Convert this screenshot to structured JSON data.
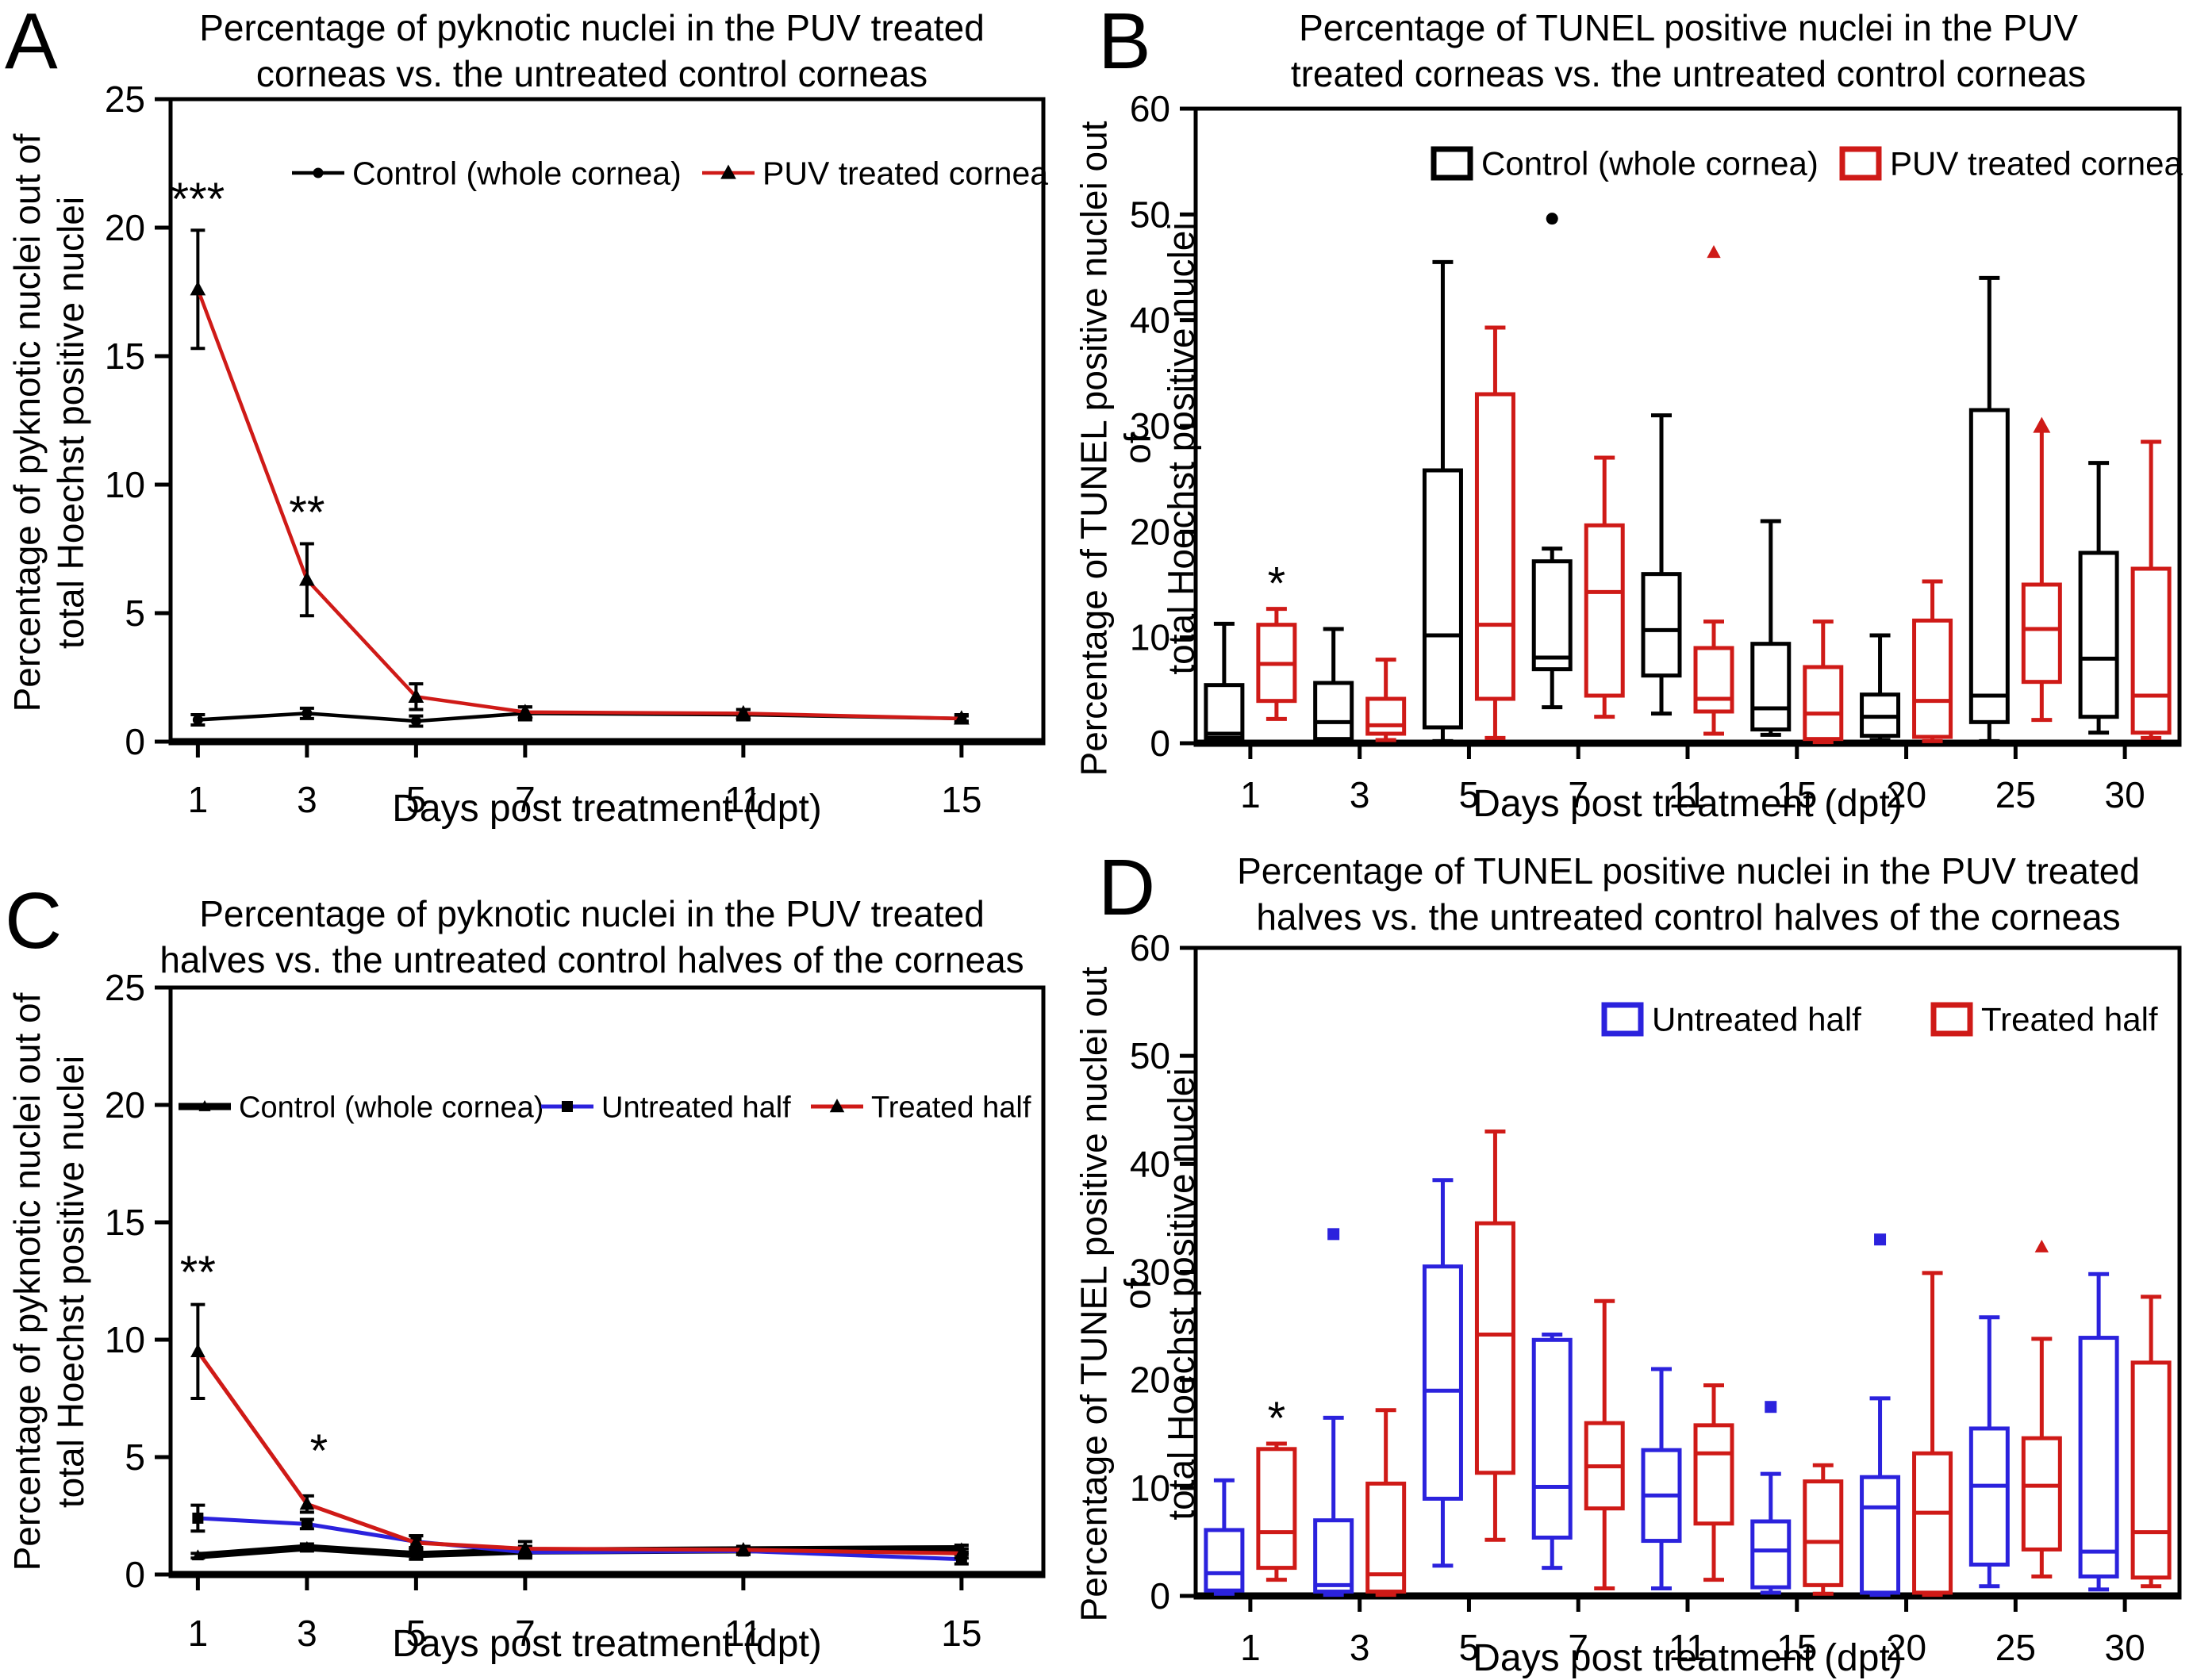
{
  "chart_data": [
    {
      "panel": "A",
      "type": "line",
      "title_lines": [
        "Percentage of pyknotic nuclei in the PUV treated",
        "corneas vs. the untreated control corneas"
      ],
      "ylabel_lines": [
        "Percentage of pyknotic nuclei out of",
        "total Hoechst positive nuclei"
      ],
      "xlabel": "Days post treatment (dpt)",
      "x_days": [
        1,
        3,
        5,
        7,
        11,
        15
      ],
      "ylim": [
        0,
        25
      ],
      "yticks": [
        0,
        5,
        10,
        15,
        20,
        25
      ],
      "grid": false,
      "legend_position": "top-inside",
      "series": [
        {
          "name": "Control (whole cornea)",
          "color": "#000000",
          "marker": "circle",
          "marker_color": "#000000",
          "marker_size": 13,
          "line_width": 4.5,
          "values": [
            0.85,
            1.1,
            0.8,
            1.1,
            1.05,
            0.9
          ],
          "errors": [
            0.2,
            0.2,
            0.2,
            0.25,
            0.2,
            0.15
          ]
        },
        {
          "name": "PUV treated cornea",
          "color": "#cf1a17",
          "marker": "triangle",
          "marker_color": "#000000",
          "marker_size": 17,
          "line_width": 4.5,
          "values": [
            17.6,
            6.3,
            1.75,
            1.15,
            1.1,
            0.9
          ],
          "errors": [
            2.3,
            1.4,
            0.5,
            0.2,
            0.15,
            0.1
          ]
        }
      ],
      "annotations": [
        {
          "text": "***",
          "day": 1,
          "y": 20.5
        },
        {
          "text": "**",
          "day": 3,
          "y": 8.3
        }
      ]
    },
    {
      "panel": "B",
      "type": "box",
      "title_lines": [
        "Percentage of TUNEL positive nuclei in the PUV",
        "treated corneas vs. the untreated control corneas"
      ],
      "ylabel_lines": [
        "Percentage of TUNEL positive nuclei out of",
        "total Hoechst positive nuclei"
      ],
      "xlabel": "Days post treatment (dpt)",
      "categories": [
        1,
        3,
        5,
        7,
        11,
        15,
        20,
        25,
        30
      ],
      "ylim": [
        0,
        60
      ],
      "yticks": [
        0,
        10,
        20,
        30,
        40,
        50,
        60
      ],
      "grid": false,
      "legend_position": "top-inside",
      "series": [
        {
          "name": "Control (whole cornea)",
          "color": "#000000",
          "outlier_marker": "circle",
          "boxes": [
            {
              "lo": 0.2,
              "q1": 0.5,
              "med": 0.9,
              "q3": 5.5,
              "hi": 11.3,
              "out": []
            },
            {
              "lo": 0.1,
              "q1": 0.4,
              "med": 2.0,
              "q3": 5.7,
              "hi": 10.8,
              "out": []
            },
            {
              "lo": 0.2,
              "q1": 1.5,
              "med": 10.2,
              "q3": 25.8,
              "hi": 45.5,
              "out": []
            },
            {
              "lo": 3.4,
              "q1": 7.0,
              "med": 8.1,
              "q3": 17.2,
              "hi": 18.4,
              "out": [
                49.6
              ]
            },
            {
              "lo": 2.8,
              "q1": 6.4,
              "med": 10.7,
              "q3": 16.0,
              "hi": 31.0,
              "out": []
            },
            {
              "lo": 0.8,
              "q1": 1.3,
              "med": 3.3,
              "q3": 9.4,
              "hi": 21.0,
              "out": []
            },
            {
              "lo": 0.3,
              "q1": 0.7,
              "med": 2.5,
              "q3": 4.6,
              "hi": 10.2,
              "out": []
            },
            {
              "lo": 0.2,
              "q1": 2.0,
              "med": 4.5,
              "q3": 31.5,
              "hi": 44.0,
              "out": []
            },
            {
              "lo": 1.0,
              "q1": 2.5,
              "med": 8.0,
              "q3": 18.0,
              "hi": 26.5,
              "out": []
            }
          ]
        },
        {
          "name": "PUV treated cornea",
          "color": "#cf1a17",
          "outlier_marker": "triangle",
          "boxes": [
            {
              "lo": 2.3,
              "q1": 4.0,
              "med": 7.5,
              "q3": 11.2,
              "hi": 12.7,
              "out": []
            },
            {
              "lo": 0.3,
              "q1": 0.9,
              "med": 1.7,
              "q3": 4.2,
              "hi": 7.9,
              "out": []
            },
            {
              "lo": 0.5,
              "q1": 4.2,
              "med": 11.2,
              "q3": 33.0,
              "hi": 39.3,
              "out": []
            },
            {
              "lo": 2.5,
              "q1": 4.5,
              "med": 14.3,
              "q3": 20.6,
              "hi": 27.0,
              "out": []
            },
            {
              "lo": 0.9,
              "q1": 3.0,
              "med": 4.2,
              "q3": 9.0,
              "hi": 11.5,
              "out": [
                46.4
              ]
            },
            {
              "lo": 0.1,
              "q1": 0.4,
              "med": 2.8,
              "q3": 7.2,
              "hi": 11.5,
              "out": []
            },
            {
              "lo": 0.2,
              "q1": 0.6,
              "med": 4.0,
              "q3": 11.6,
              "hi": 15.3,
              "out": []
            },
            {
              "lo": 2.2,
              "q1": 5.8,
              "med": 10.8,
              "q3": 15.0,
              "hi": 29.5,
              "out": [],
              "arrow": true
            },
            {
              "lo": 0.5,
              "q1": 1.0,
              "med": 4.5,
              "q3": 16.5,
              "hi": 28.5,
              "out": []
            }
          ]
        }
      ],
      "annotations": [
        {
          "text": "*",
          "category": 1,
          "series": 1,
          "y": 13.6
        }
      ]
    },
    {
      "panel": "C",
      "type": "line",
      "title_lines": [
        "Percentage of pyknotic nuclei in the PUV treated",
        "halves vs. the untreated control halves of the corneas"
      ],
      "ylabel_lines": [
        "Percentage of pyknotic nuclei out of",
        "total Hoechst positive nuclei"
      ],
      "xlabel": "Days post treatment (dpt)",
      "x_days": [
        1,
        3,
        5,
        7,
        11,
        15
      ],
      "ylim": [
        0,
        25
      ],
      "yticks": [
        0,
        5,
        10,
        15,
        20,
        25
      ],
      "grid": false,
      "legend_position": "top-inside",
      "series": [
        {
          "name": "Control (whole cornea)",
          "color": "#000000",
          "marker": "triangle",
          "marker_color": "#000000",
          "marker_size": 13,
          "line_width": 9,
          "values": [
            0.8,
            1.15,
            0.85,
            1.0,
            1.05,
            1.1
          ],
          "errors": [
            0.1,
            0.15,
            0.2,
            0.15,
            0.1,
            0.15
          ]
        },
        {
          "name": "Untreated half",
          "color": "#2b22dd",
          "marker": "square",
          "marker_color": "#000000",
          "marker_size": 14,
          "line_width": 5,
          "values": [
            2.4,
            2.15,
            1.4,
            0.95,
            1.0,
            0.65
          ],
          "errors": [
            0.55,
            0.2,
            0.25,
            0.25,
            0.15,
            0.2
          ]
        },
        {
          "name": "Treated half",
          "color": "#cf1a17",
          "marker": "triangle",
          "marker_color": "#000000",
          "marker_size": 16,
          "line_width": 5,
          "values": [
            9.5,
            3.0,
            1.35,
            1.1,
            1.05,
            0.9
          ],
          "errors": [
            2.0,
            0.35,
            0.3,
            0.3,
            0.15,
            0.2
          ]
        }
      ],
      "annotations": [
        {
          "text": "**",
          "day": 1,
          "y": 12.2
        },
        {
          "text": "*",
          "day": 3,
          "y": 4.6,
          "dx": 15
        }
      ]
    },
    {
      "panel": "D",
      "type": "box",
      "title_lines": [
        "Percentage of TUNEL positive nuclei in the PUV treated",
        "halves vs. the untreated control halves of the corneas"
      ],
      "ylabel_lines": [
        "Percentage of TUNEL positive nuclei out of",
        "total Hoechst positive nuclei"
      ],
      "xlabel": "Days post treatment (dpt)",
      "categories": [
        1,
        3,
        5,
        7,
        11,
        15,
        20,
        25,
        30
      ],
      "ylim": [
        0,
        60
      ],
      "yticks": [
        0,
        10,
        20,
        30,
        40,
        50,
        60
      ],
      "grid": false,
      "legend_position": "top-inside",
      "series": [
        {
          "name": "Untreated half",
          "color": "#2b22dd",
          "outlier_marker": "square",
          "boxes": [
            {
              "lo": 0.2,
              "q1": 0.5,
              "med": 2.1,
              "q3": 6.1,
              "hi": 10.7,
              "out": []
            },
            {
              "lo": 0.1,
              "q1": 0.4,
              "med": 1.0,
              "q3": 7.0,
              "hi": 16.5,
              "out": [
                33.5
              ]
            },
            {
              "lo": 2.8,
              "q1": 9.0,
              "med": 19.0,
              "q3": 30.5,
              "hi": 38.5,
              "out": []
            },
            {
              "lo": 2.6,
              "q1": 5.4,
              "med": 10.1,
              "q3": 23.7,
              "hi": 24.2,
              "out": []
            },
            {
              "lo": 0.7,
              "q1": 5.1,
              "med": 9.3,
              "q3": 13.5,
              "hi": 21.0,
              "out": []
            },
            {
              "lo": 0.3,
              "q1": 0.8,
              "med": 4.2,
              "q3": 6.9,
              "hi": 11.3,
              "out": [
                17.5
              ]
            },
            {
              "lo": 0.1,
              "q1": 0.3,
              "med": 8.2,
              "q3": 11.0,
              "hi": 18.3,
              "out": [
                33.0
              ]
            },
            {
              "lo": 0.9,
              "q1": 2.9,
              "med": 10.2,
              "q3": 15.5,
              "hi": 25.8,
              "out": []
            },
            {
              "lo": 0.6,
              "q1": 1.8,
              "med": 4.1,
              "q3": 23.9,
              "hi": 29.8,
              "out": []
            }
          ]
        },
        {
          "name": "Treated half",
          "color": "#cf1a17",
          "outlier_marker": "triangle",
          "boxes": [
            {
              "lo": 1.5,
              "q1": 2.6,
              "med": 5.9,
              "q3": 13.6,
              "hi": 14.1,
              "out": []
            },
            {
              "lo": 0.1,
              "q1": 0.4,
              "med": 2.0,
              "q3": 10.4,
              "hi": 17.2,
              "out": []
            },
            {
              "lo": 5.2,
              "q1": 11.4,
              "med": 24.2,
              "q3": 34.5,
              "hi": 43.0,
              "out": []
            },
            {
              "lo": 0.7,
              "q1": 8.1,
              "med": 12.0,
              "q3": 16.0,
              "hi": 27.3,
              "out": []
            },
            {
              "lo": 1.5,
              "q1": 6.7,
              "med": 13.2,
              "q3": 15.8,
              "hi": 19.5,
              "out": []
            },
            {
              "lo": 0.2,
              "q1": 1.0,
              "med": 5.0,
              "q3": 10.6,
              "hi": 12.1,
              "out": []
            },
            {
              "lo": 0.1,
              "q1": 0.3,
              "med": 7.7,
              "q3": 13.2,
              "hi": 29.9,
              "out": []
            },
            {
              "lo": 1.8,
              "q1": 4.3,
              "med": 10.2,
              "q3": 14.6,
              "hi": 23.8,
              "out": [
                32.3
              ]
            },
            {
              "lo": 0.9,
              "q1": 1.7,
              "med": 5.9,
              "q3": 21.6,
              "hi": 27.7,
              "out": []
            }
          ]
        }
      ],
      "annotations": [
        {
          "text": "*",
          "category": 1,
          "series": 1,
          "y": 15.0
        }
      ]
    }
  ],
  "colors": {
    "control_black": "#000000",
    "treated_red": "#cf1a17",
    "untreated_blue": "#2b22dd",
    "background": "#ffffff"
  }
}
